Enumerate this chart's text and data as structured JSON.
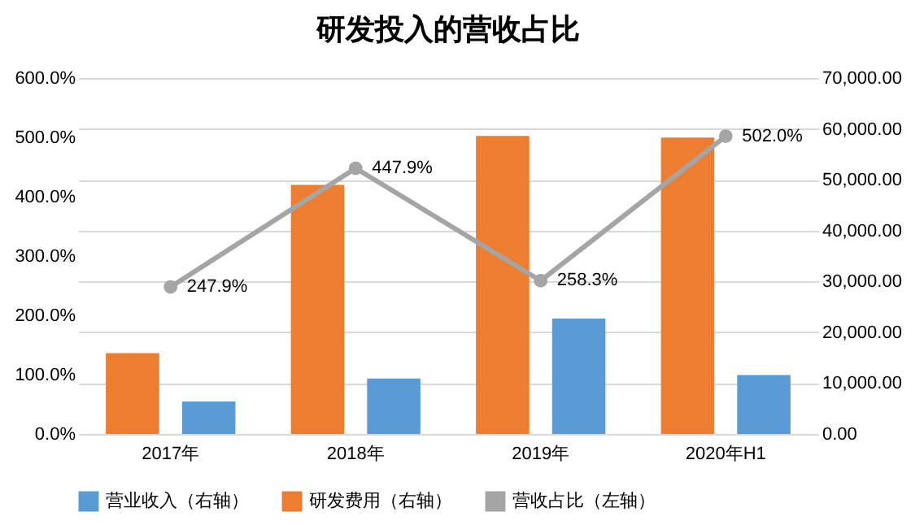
{
  "chart_data": {
    "type": "bar",
    "title": "研发投入的营收占比",
    "categories": [
      "2017年",
      "2018年",
      "2019年",
      "2020年H1"
    ],
    "series": [
      {
        "name": "营业收入（右轴）",
        "color": "#5b9bd5",
        "axis": "y2",
        "values": [
          6400,
          10900,
          22700,
          11600
        ]
      },
      {
        "name": "研发费用（右轴）",
        "color": "#ed7d31",
        "axis": "y2",
        "values": [
          15900,
          49000,
          58600,
          58300
        ]
      },
      {
        "name": "营收占比（左轴）",
        "type": "line",
        "color": "#a5a5a5",
        "values": [
          247.9,
          447.9,
          258.3,
          502.0
        ],
        "value_labels": [
          "247.9%",
          "447.9%",
          "258.3%",
          "502.0%"
        ]
      }
    ],
    "ylim": [
      0,
      600
    ],
    "yticks": [
      {
        "value": 0,
        "label": "0.0%"
      },
      {
        "value": 100,
        "label": "100.0%"
      },
      {
        "value": 200,
        "label": "200.0%"
      },
      {
        "value": 300,
        "label": "300.0%"
      },
      {
        "value": 400,
        "label": "400.0%"
      },
      {
        "value": 500,
        "label": "500.0%"
      },
      {
        "value": 600,
        "label": "600.0%"
      }
    ],
    "y2lim": [
      0,
      70000
    ],
    "y2ticks": [
      {
        "value": 0,
        "label": "0.00"
      },
      {
        "value": 10000,
        "label": "10,000.00"
      },
      {
        "value": 20000,
        "label": "20,000.00"
      },
      {
        "value": 30000,
        "label": "30,000.00"
      },
      {
        "value": 40000,
        "label": "40,000.00"
      },
      {
        "value": 50000,
        "label": "50,000.00"
      },
      {
        "value": 60000,
        "label": "60,000.00"
      },
      {
        "value": 70000,
        "label": "70,000.00"
      }
    ],
    "grid": "y",
    "legend": "bottom",
    "marker": "circle"
  }
}
